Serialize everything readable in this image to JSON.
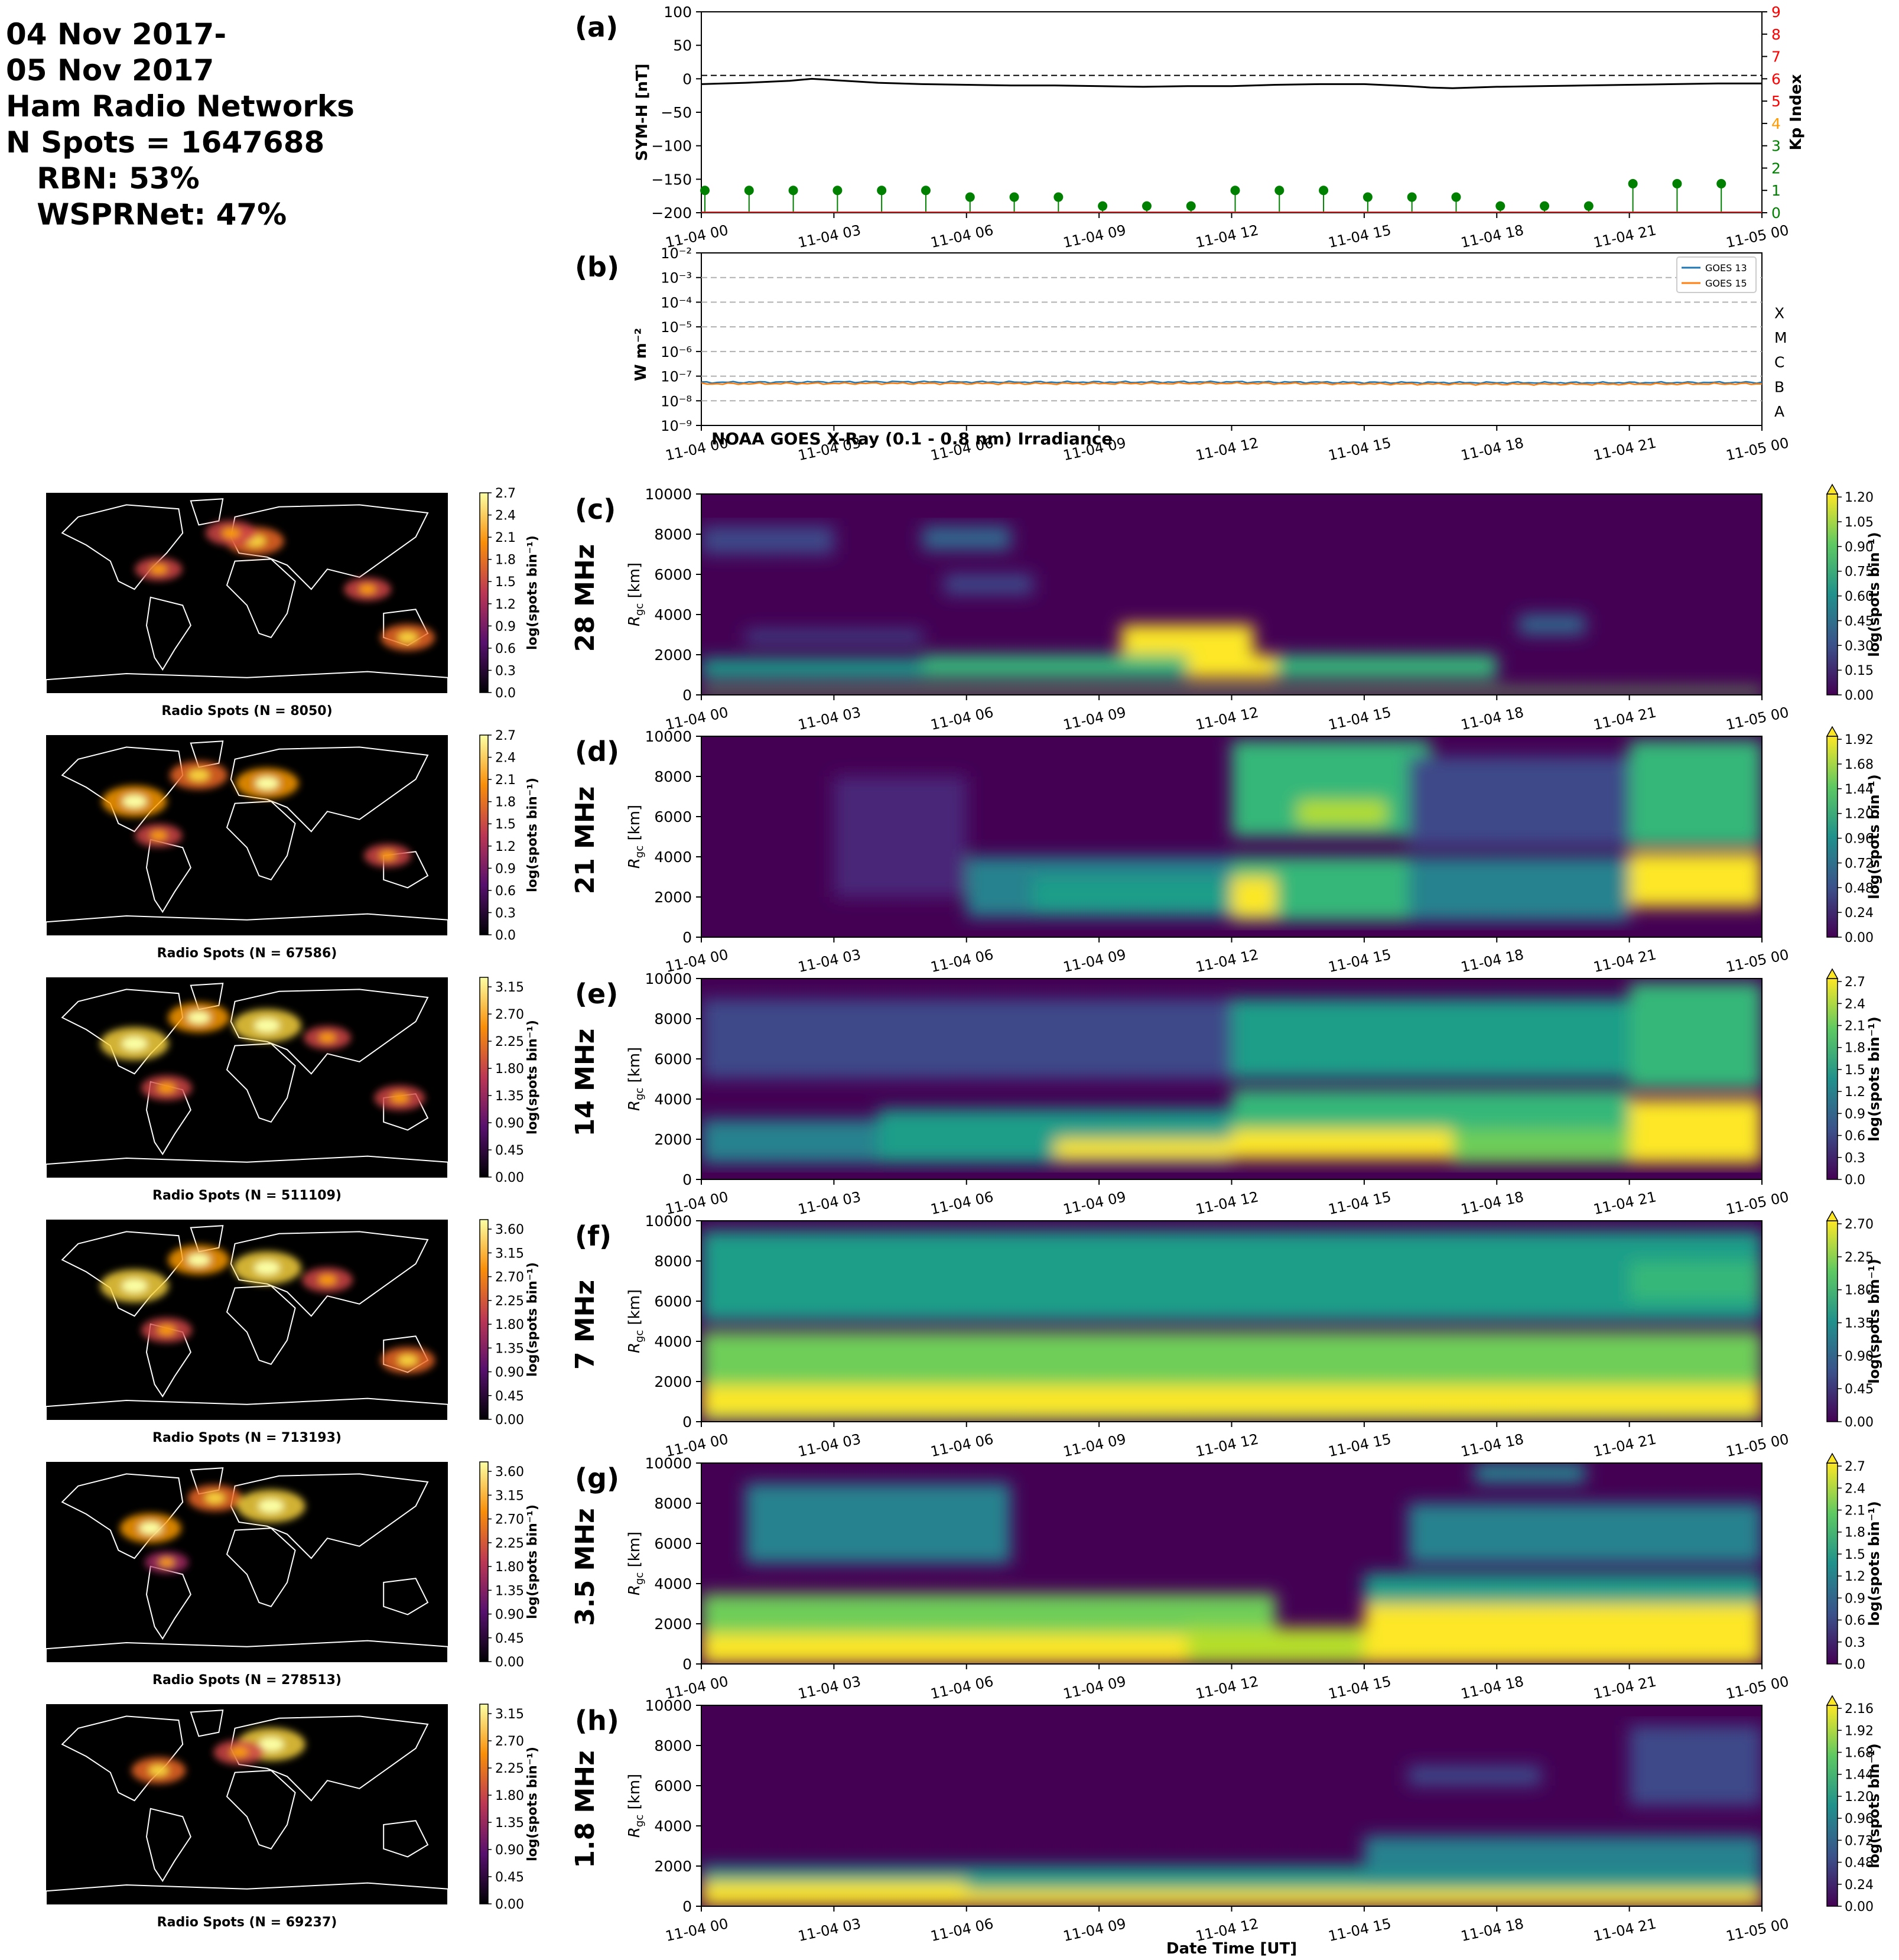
{
  "header": {
    "lines": [
      "04 Nov 2017-",
      "05 Nov 2017",
      "Ham Radio Networks",
      "N Spots = 1647688",
      "   RBN: 53%",
      "   WSPRNet: 47%"
    ]
  },
  "time_ticks": [
    "11-04 00",
    "11-04 03",
    "11-04 06",
    "11-04 09",
    "11-04 12",
    "11-04 15",
    "11-04 18",
    "11-04 21",
    "11-05 00"
  ],
  "xlabel": "Date Time [UT]",
  "colors": {
    "sym": "#000000",
    "kp_green": "#008000",
    "kp_orange": "#ff9900",
    "kp_red": "#ff0000",
    "goes13": "#1f77b4",
    "goes15": "#ff7f0e",
    "map_bg": "#000000",
    "coast": "#ffffff"
  },
  "chart_data": [
    {
      "id": "a",
      "type": "line",
      "panel_label": "(a)",
      "ylabel": "SYM-H [nT]",
      "ylabel_right": "Kp Index",
      "ylim": [
        -200,
        100
      ],
      "yticks": [
        100,
        50,
        0,
        -50,
        -100,
        -150,
        -200
      ],
      "ylim_right": [
        0,
        9
      ],
      "yticks_right": [
        0,
        1,
        2,
        3,
        4,
        5,
        6,
        7,
        8,
        9
      ],
      "reference_line": 5,
      "sym_h": {
        "x_hours": [
          0,
          1,
          2,
          2.5,
          3,
          4,
          5,
          6,
          7,
          8,
          9,
          10,
          11,
          12,
          13,
          14,
          15,
          16,
          16.5,
          17,
          18,
          19,
          20,
          21,
          22,
          23,
          24
        ],
        "values": [
          -8,
          -6,
          -3,
          0,
          -2,
          -6,
          -8,
          -9,
          -10,
          -10,
          -11,
          -12,
          -11,
          -11,
          -9,
          -8,
          -8,
          -11,
          -13,
          -14,
          -12,
          -11,
          -10,
          -9,
          -8,
          -7,
          -7
        ]
      },
      "kp": {
        "x_hours": [
          0,
          1,
          2,
          3,
          4,
          5,
          6,
          7,
          8,
          9,
          10,
          11,
          12,
          13,
          14,
          15,
          16,
          17,
          18,
          19,
          20,
          21,
          22,
          23
        ],
        "values": [
          1,
          1,
          1,
          1,
          1,
          1,
          0.7,
          0.7,
          0.7,
          0.3,
          0.3,
          0.3,
          1,
          1,
          1,
          0.7,
          0.7,
          0.7,
          0.3,
          0.3,
          0.3,
          1.3,
          1.3,
          1.3
        ]
      }
    },
    {
      "id": "b",
      "type": "line",
      "panel_label": "(b)",
      "ylabel": "W m⁻²",
      "yscale": "log",
      "ylim_exp": [
        -9,
        -2
      ],
      "ytick_labels": [
        "10⁻²",
        "10⁻³",
        "10⁻⁴",
        "10⁻⁵",
        "10⁻⁶",
        "10⁻⁷",
        "10⁻⁸",
        "10⁻⁹"
      ],
      "flare_classes": [
        "X",
        "M",
        "C",
        "B",
        "A"
      ],
      "annotation": "NOAA GOES X-Ray (0.1 - 0.8 nm) Irradiance",
      "legend": [
        "GOES 13",
        "GOES 15"
      ],
      "legend_loc": "upper right",
      "series": [
        {
          "name": "GOES 13",
          "x_hours": [
            0,
            4,
            8,
            12,
            16,
            20,
            24
          ],
          "values": [
            5.6e-08,
            5.9e-08,
            5.7e-08,
            5.8e-08,
            5.5e-08,
            5.4e-08,
            5.6e-08
          ]
        },
        {
          "name": "GOES 15",
          "x_hours": [
            0,
            4,
            8,
            12,
            16,
            20,
            24
          ],
          "values": [
            4.9e-08,
            5.1e-08,
            5e-08,
            5.1e-08,
            4.8e-08,
            4.7e-08,
            4.9e-08
          ]
        }
      ]
    },
    {
      "id": "c",
      "type": "heatmap",
      "panel_label": "(c)",
      "band": "28 MHz",
      "ylabel": "R_gc [km]",
      "ylim": [
        0,
        10000
      ],
      "yticks": [
        0,
        2000,
        4000,
        6000,
        8000,
        10000
      ],
      "cbar_label": "log(spots bin⁻¹)",
      "cbar_ticks": [
        "0.00",
        "0.15",
        "0.30",
        "0.45",
        "0.60",
        "0.75",
        "0.90",
        "1.05",
        "1.20"
      ],
      "features": [
        {
          "t0": 0,
          "t1": 24,
          "r0": 0,
          "r1": 300,
          "v": 0.9
        },
        {
          "t0": 0,
          "t1": 5,
          "r0": 800,
          "r1": 1800,
          "v": 0.7
        },
        {
          "t0": 5,
          "t1": 18,
          "r0": 800,
          "r1": 2000,
          "v": 0.75
        },
        {
          "t0": 9.5,
          "t1": 12.5,
          "r0": 2000,
          "r1": 3500,
          "v": 1.1
        },
        {
          "t0": 11,
          "t1": 13,
          "r0": 800,
          "r1": 2000,
          "v": 1.2
        },
        {
          "t0": 0,
          "t1": 3,
          "r0": 7000,
          "r1": 8400,
          "v": 0.35
        },
        {
          "t0": 5,
          "t1": 7,
          "r0": 7200,
          "r1": 8400,
          "v": 0.45
        },
        {
          "t0": 5.5,
          "t1": 7.5,
          "r0": 5000,
          "r1": 6000,
          "v": 0.35
        },
        {
          "t0": 1,
          "t1": 5,
          "r0": 2600,
          "r1": 3200,
          "v": 0.3
        },
        {
          "t0": 18.5,
          "t1": 20,
          "r0": 3000,
          "r1": 4000,
          "v": 0.4
        }
      ]
    },
    {
      "id": "d",
      "type": "heatmap",
      "panel_label": "(d)",
      "band": "21 MHz",
      "ylabel": "R_gc [km]",
      "ylim": [
        0,
        10000
      ],
      "yticks": [
        0,
        2000,
        4000,
        6000,
        8000,
        10000
      ],
      "cbar_label": "log(spots bin⁻¹)",
      "cbar_ticks": [
        "0.00",
        "0.24",
        "0.48",
        "0.72",
        "0.96",
        "1.20",
        "1.44",
        "1.68",
        "1.92"
      ],
      "features": [
        {
          "t0": 6,
          "t1": 12,
          "r0": 1000,
          "r1": 4000,
          "v": 0.8
        },
        {
          "t0": 7.5,
          "t1": 12,
          "r0": 1200,
          "r1": 3000,
          "v": 1.1
        },
        {
          "t0": 12,
          "t1": 16,
          "r0": 800,
          "r1": 4000,
          "v": 1.3
        },
        {
          "t0": 12,
          "t1": 13,
          "r0": 1000,
          "r1": 3000,
          "v": 1.9
        },
        {
          "t0": 12,
          "t1": 16.5,
          "r0": 5000,
          "r1": 9800,
          "v": 1.2
        },
        {
          "t0": 13.5,
          "t1": 15.5,
          "r0": 5600,
          "r1": 6800,
          "v": 1.6
        },
        {
          "t0": 16,
          "t1": 21,
          "r0": 800,
          "r1": 4000,
          "v": 0.9
        },
        {
          "t0": 16,
          "t1": 21,
          "r0": 4500,
          "r1": 9000,
          "v": 0.5
        },
        {
          "t0": 21,
          "t1": 24,
          "r0": 1500,
          "r1": 4200,
          "v": 1.95
        },
        {
          "t0": 21,
          "t1": 24,
          "r0": 4500,
          "r1": 9800,
          "v": 1.2
        },
        {
          "t0": 3,
          "t1": 6,
          "r0": 2000,
          "r1": 8000,
          "v": 0.3
        }
      ]
    },
    {
      "id": "e",
      "type": "heatmap",
      "panel_label": "(e)",
      "band": "14 MHz",
      "ylabel": "R_gc [km]",
      "ylim": [
        0,
        10000
      ],
      "yticks": [
        0,
        2000,
        4000,
        6000,
        8000,
        10000
      ],
      "cbar_label": "log(spots bin⁻¹)",
      "cbar_ticks": [
        "0.0",
        "0.3",
        "0.6",
        "0.9",
        "1.2",
        "1.5",
        "1.8",
        "2.1",
        "2.4",
        "2.7"
      ],
      "features": [
        {
          "t0": 0,
          "t1": 4,
          "r0": 800,
          "r1": 3000,
          "v": 1.2
        },
        {
          "t0": 4,
          "t1": 12,
          "r0": 800,
          "r1": 3500,
          "v": 1.6
        },
        {
          "t0": 8,
          "t1": 12,
          "r0": 1000,
          "r1": 2000,
          "v": 2.6
        },
        {
          "t0": 12,
          "t1": 17,
          "r0": 1000,
          "r1": 2500,
          "v": 2.8
        },
        {
          "t0": 12,
          "t1": 21,
          "r0": 2500,
          "r1": 4500,
          "v": 1.8
        },
        {
          "t0": 12,
          "t1": 21,
          "r0": 5000,
          "r1": 9000,
          "v": 1.5
        },
        {
          "t0": 17,
          "t1": 21,
          "r0": 800,
          "r1": 2500,
          "v": 2.0
        },
        {
          "t0": 21,
          "t1": 24,
          "r0": 800,
          "r1": 4000,
          "v": 2.6
        },
        {
          "t0": 21,
          "t1": 24,
          "r0": 4500,
          "r1": 9800,
          "v": 1.8
        },
        {
          "t0": 0,
          "t1": 12,
          "r0": 5000,
          "r1": 9000,
          "v": 0.6
        }
      ]
    },
    {
      "id": "f",
      "type": "heatmap",
      "panel_label": "(f)",
      "band": "7 MHz",
      "ylabel": "R_gc [km]",
      "ylim": [
        0,
        10000
      ],
      "yticks": [
        0,
        2000,
        4000,
        6000,
        8000,
        10000
      ],
      "cbar_label": "log(spots bin⁻¹)",
      "cbar_ticks": [
        "0.00",
        "0.45",
        "0.90",
        "1.35",
        "1.80",
        "2.25",
        "2.70"
      ],
      "features": [
        {
          "t0": 0,
          "t1": 24,
          "r0": 0,
          "r1": 4500,
          "v": 2.0
        },
        {
          "t0": 0,
          "t1": 24,
          "r0": 300,
          "r1": 1800,
          "v": 2.6
        },
        {
          "t0": 7,
          "t1": 11,
          "r0": 300,
          "r1": 1000,
          "v": 2.85
        },
        {
          "t0": 16,
          "t1": 19,
          "r0": 300,
          "r1": 1200,
          "v": 2.85
        },
        {
          "t0": 0,
          "t1": 24,
          "r0": 5000,
          "r1": 9500,
          "v": 1.35
        },
        {
          "t0": 21,
          "t1": 24,
          "r0": 6000,
          "r1": 8000,
          "v": 1.8
        }
      ]
    },
    {
      "id": "g",
      "type": "heatmap",
      "panel_label": "(g)",
      "band": "3.5 MHz",
      "ylabel": "R_gc [km]",
      "ylim": [
        0,
        10000
      ],
      "yticks": [
        0,
        2000,
        4000,
        6000,
        8000,
        10000
      ],
      "cbar_label": "log(spots bin⁻¹)",
      "cbar_ticks": [
        "0.0",
        "0.3",
        "0.6",
        "0.9",
        "1.2",
        "1.5",
        "1.8",
        "2.1",
        "2.4",
        "2.7"
      ],
      "features": [
        {
          "t0": 0,
          "t1": 13,
          "r0": 0,
          "r1": 3500,
          "v": 1.9
        },
        {
          "t0": 0,
          "t1": 11,
          "r0": 0,
          "r1": 1500,
          "v": 2.6
        },
        {
          "t0": 11,
          "t1": 15,
          "r0": 0,
          "r1": 1800,
          "v": 2.2
        },
        {
          "t0": 15,
          "t1": 24,
          "r0": 0,
          "r1": 3000,
          "v": 2.5
        },
        {
          "t0": 15,
          "t1": 24,
          "r0": 3000,
          "r1": 4500,
          "v": 1.6
        },
        {
          "t0": 1,
          "t1": 7,
          "r0": 5000,
          "r1": 9000,
          "v": 1.3
        },
        {
          "t0": 16,
          "t1": 24,
          "r0": 5000,
          "r1": 8000,
          "v": 1.1
        },
        {
          "t0": 17.5,
          "t1": 20,
          "r0": 9000,
          "r1": 10000,
          "v": 1.3
        }
      ]
    },
    {
      "id": "h",
      "type": "heatmap",
      "panel_label": "(h)",
      "band": "1.8 MHz",
      "ylabel": "R_gc [km]",
      "ylim": [
        0,
        10000
      ],
      "yticks": [
        0,
        2000,
        4000,
        6000,
        8000,
        10000
      ],
      "cbar_label": "log(spots bin⁻¹)",
      "cbar_ticks": [
        "0.00",
        "0.24",
        "0.48",
        "0.72",
        "0.96",
        "1.20",
        "1.44",
        "1.68",
        "1.92",
        "2.16"
      ],
      "features": [
        {
          "t0": 0,
          "t1": 24,
          "r0": 0,
          "r1": 2000,
          "v": 1.2
        },
        {
          "t0": 0,
          "t1": 24,
          "r0": 0,
          "r1": 800,
          "v": 2.0
        },
        {
          "t0": 0,
          "t1": 6,
          "r0": 0,
          "r1": 1200,
          "v": 2.1
        },
        {
          "t0": 15,
          "t1": 24,
          "r0": 1500,
          "r1": 3500,
          "v": 0.9
        },
        {
          "t0": 21,
          "t1": 24,
          "r0": 5000,
          "r1": 9000,
          "v": 0.5
        },
        {
          "t0": 16,
          "t1": 19,
          "r0": 6000,
          "r1": 7000,
          "v": 0.5
        }
      ]
    }
  ],
  "maps": [
    {
      "id": "c",
      "title": "Radio Spots (N = 8050)",
      "cbar_label": "log(spots bin⁻¹)",
      "cbar_ticks": [
        "0.0",
        "0.3",
        "0.6",
        "0.9",
        "1.2",
        "1.5",
        "1.8",
        "2.1",
        "2.4",
        "2.7"
      ],
      "hotspots": [
        [
          0.52,
          0.24,
          0.7
        ],
        [
          0.46,
          0.2,
          0.5
        ],
        [
          0.9,
          0.72,
          0.6
        ],
        [
          0.28,
          0.38,
          0.4
        ],
        [
          0.8,
          0.48,
          0.4
        ]
      ]
    },
    {
      "id": "d",
      "title": "Radio Spots (N = 67586)",
      "cbar_label": "log(spots bin⁻¹)",
      "cbar_ticks": [
        "0.0",
        "0.3",
        "0.6",
        "0.9",
        "1.2",
        "1.5",
        "1.8",
        "2.1",
        "2.4",
        "2.7"
      ],
      "hotspots": [
        [
          0.22,
          0.33,
          0.9
        ],
        [
          0.38,
          0.2,
          0.7
        ],
        [
          0.55,
          0.24,
          0.85
        ],
        [
          0.28,
          0.5,
          0.4
        ],
        [
          0.85,
          0.6,
          0.4
        ]
      ]
    },
    {
      "id": "e",
      "title": "Radio Spots (N = 511109)",
      "cbar_label": "log(spots bin⁻¹)",
      "cbar_ticks": [
        "0.00",
        "0.45",
        "0.90",
        "1.35",
        "1.80",
        "2.25",
        "2.70",
        "3.15"
      ],
      "hotspots": [
        [
          0.22,
          0.33,
          1.0
        ],
        [
          0.38,
          0.2,
          0.8
        ],
        [
          0.55,
          0.24,
          1.0
        ],
        [
          0.3,
          0.55,
          0.5
        ],
        [
          0.88,
          0.6,
          0.5
        ],
        [
          0.7,
          0.3,
          0.4
        ]
      ]
    },
    {
      "id": "f",
      "title": "Radio Spots (N = 713193)",
      "cbar_label": "log(spots bin⁻¹)",
      "cbar_ticks": [
        "0.00",
        "0.45",
        "0.90",
        "1.35",
        "1.80",
        "2.25",
        "2.70",
        "3.15",
        "3.60"
      ],
      "hotspots": [
        [
          0.22,
          0.33,
          1.0
        ],
        [
          0.38,
          0.2,
          0.8
        ],
        [
          0.55,
          0.24,
          1.0
        ],
        [
          0.3,
          0.55,
          0.5
        ],
        [
          0.9,
          0.7,
          0.6
        ],
        [
          0.7,
          0.3,
          0.5
        ]
      ]
    },
    {
      "id": "g",
      "title": "Radio Spots (N = 278513)",
      "cbar_label": "log(spots bin⁻¹)",
      "cbar_ticks": [
        "0.00",
        "0.45",
        "0.90",
        "1.35",
        "1.80",
        "2.25",
        "2.70",
        "3.15",
        "3.60"
      ],
      "hotspots": [
        [
          0.26,
          0.33,
          0.8
        ],
        [
          0.42,
          0.18,
          0.6
        ],
        [
          0.56,
          0.22,
          1.0
        ],
        [
          0.3,
          0.5,
          0.3
        ]
      ]
    },
    {
      "id": "h",
      "title": "Radio Spots (N = 69237)",
      "cbar_label": "log(spots bin⁻¹)",
      "cbar_ticks": [
        "0.00",
        "0.45",
        "0.90",
        "1.35",
        "1.80",
        "2.25",
        "2.70",
        "3.15"
      ],
      "hotspots": [
        [
          0.28,
          0.33,
          0.6
        ],
        [
          0.56,
          0.2,
          1.0
        ],
        [
          0.48,
          0.24,
          0.5
        ]
      ]
    }
  ]
}
